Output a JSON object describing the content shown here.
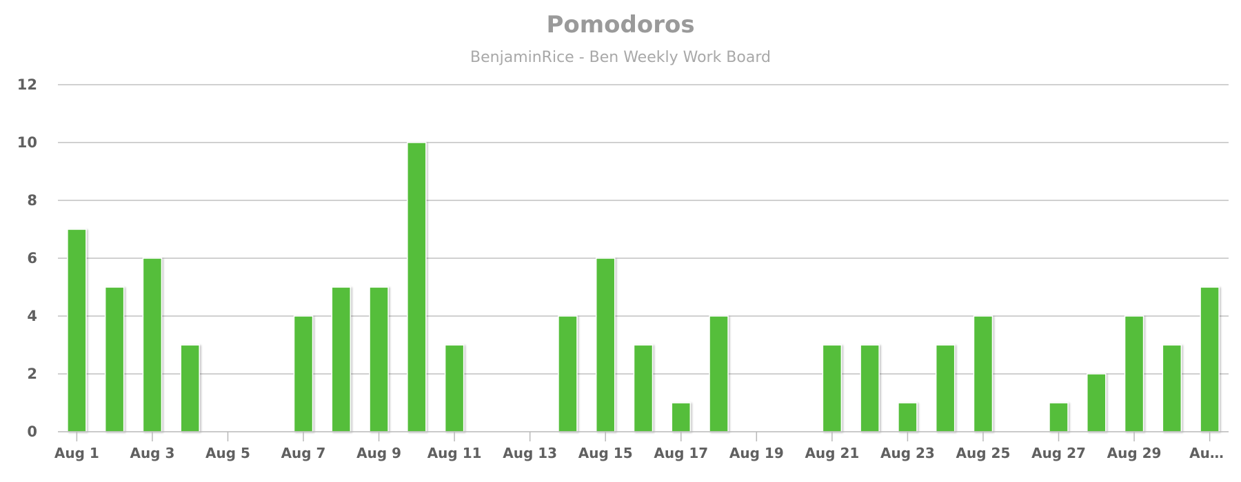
{
  "chart_data": {
    "type": "bar",
    "title": "Pomodoros",
    "subtitle": "BenjaminRice - Ben Weekly Work Board",
    "xlabel": "",
    "ylabel": "",
    "ylim": [
      0,
      12
    ],
    "yticks": [
      0,
      2,
      4,
      6,
      8,
      10,
      12
    ],
    "grid": true,
    "categories": [
      "Aug 1",
      "Aug 2",
      "Aug 3",
      "Aug 4",
      "Aug 5",
      "Aug 6",
      "Aug 7",
      "Aug 8",
      "Aug 9",
      "Aug 10",
      "Aug 11",
      "Aug 12",
      "Aug 13",
      "Aug 14",
      "Aug 15",
      "Aug 16",
      "Aug 17",
      "Aug 18",
      "Aug 19",
      "Aug 20",
      "Aug 21",
      "Aug 22",
      "Aug 23",
      "Aug 24",
      "Aug 25",
      "Aug 26",
      "Aug 27",
      "Aug 28",
      "Aug 29",
      "Aug 30",
      "Aug 31"
    ],
    "tick_labels": [
      "Aug 1",
      "Aug 3",
      "Aug 5",
      "Aug 7",
      "Aug 9",
      "Aug 11",
      "Aug 13",
      "Aug 15",
      "Aug 17",
      "Aug 19",
      "Aug 21",
      "Aug 23",
      "Aug 25",
      "Aug 27",
      "Aug 29",
      "Au…"
    ],
    "values": [
      7,
      5,
      6,
      3,
      0,
      0,
      4,
      5,
      5,
      10,
      3,
      0,
      0,
      4,
      6,
      3,
      1,
      4,
      0,
      0,
      3,
      3,
      1,
      3,
      4,
      0,
      1,
      2,
      4,
      3,
      5
    ],
    "colors": {
      "bar": "#55be3b",
      "bar_border": "#ffffff",
      "grid": "#c0c0c0",
      "axis": "#b8b8b8"
    }
  }
}
